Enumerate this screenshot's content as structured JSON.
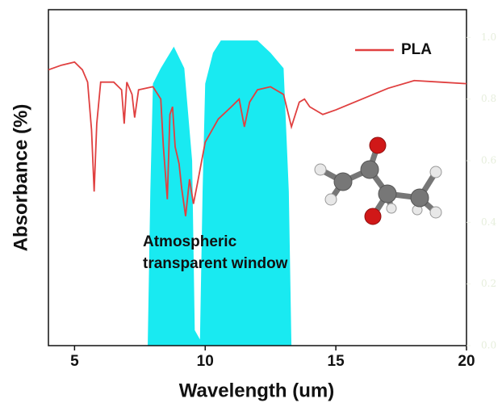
{
  "chart_data": {
    "type": "line",
    "xlabel": "Wavelength (um)",
    "ylabel": "Absorbance (%)",
    "xlim": [
      4,
      20
    ],
    "xticks": [
      5,
      10,
      15,
      20
    ],
    "ylim": [
      0,
      1.09
    ],
    "y2lim": [
      0,
      1.09
    ],
    "y2ticks": [
      {
        "value": 0,
        "label": "0.0"
      },
      {
        "value": 0.2,
        "label": "0.2"
      },
      {
        "value": 0.4,
        "label": "0.4"
      },
      {
        "value": 0.6,
        "label": "0.6"
      },
      {
        "value": 0.8,
        "label": "0.8"
      },
      {
        "value": 1,
        "label": "1.0"
      }
    ],
    "legend": "upper right",
    "annotation": [
      "Atmospheric",
      "transparent window"
    ],
    "series": [
      {
        "color": "#00e8f0",
        "axis": "y2",
        "type": "area",
        "x": [
          7.8,
          7.9,
          8.0,
          8.3,
          8.8,
          9.2,
          9.5,
          9.6,
          9.8,
          9.9,
          10.0,
          10.3,
          10.6,
          12.0,
          12.5,
          13.0,
          13.2,
          13.3
        ],
        "values": [
          0,
          0.5,
          0.85,
          0.9,
          0.97,
          0.9,
          0.6,
          0.05,
          0.02,
          0.5,
          0.85,
          0.95,
          0.99,
          0.99,
          0.95,
          0.9,
          0.5,
          0
        ]
      },
      {
        "name": "PLA",
        "color": "#e04040",
        "x": [
          4,
          4.5,
          5,
          5.3,
          5.5,
          5.65,
          5.75,
          5.85,
          6.0,
          6.5,
          6.8,
          6.9,
          7.0,
          7.2,
          7.3,
          7.45,
          8.0,
          8.3,
          8.4,
          8.55,
          8.65,
          8.75,
          8.85,
          9.0,
          9.1,
          9.25,
          9.4,
          9.55,
          9.7,
          10.0,
          10.5,
          11.0,
          11.3,
          11.5,
          11.7,
          12.0,
          12.5,
          13.0,
          13.3,
          13.6,
          13.8,
          14.0,
          14.5,
          15.0,
          16,
          17,
          18,
          19,
          20
        ],
        "values": [
          0.895,
          0.91,
          0.92,
          0.895,
          0.855,
          0.7,
          0.5,
          0.72,
          0.855,
          0.855,
          0.83,
          0.72,
          0.855,
          0.815,
          0.74,
          0.83,
          0.84,
          0.8,
          0.645,
          0.475,
          0.75,
          0.775,
          0.645,
          0.59,
          0.51,
          0.42,
          0.54,
          0.46,
          0.525,
          0.66,
          0.735,
          0.775,
          0.8,
          0.71,
          0.79,
          0.83,
          0.84,
          0.815,
          0.71,
          0.79,
          0.8,
          0.775,
          0.75,
          0.765,
          0.8,
          0.835,
          0.86,
          0.855,
          0.85
        ]
      }
    ]
  }
}
